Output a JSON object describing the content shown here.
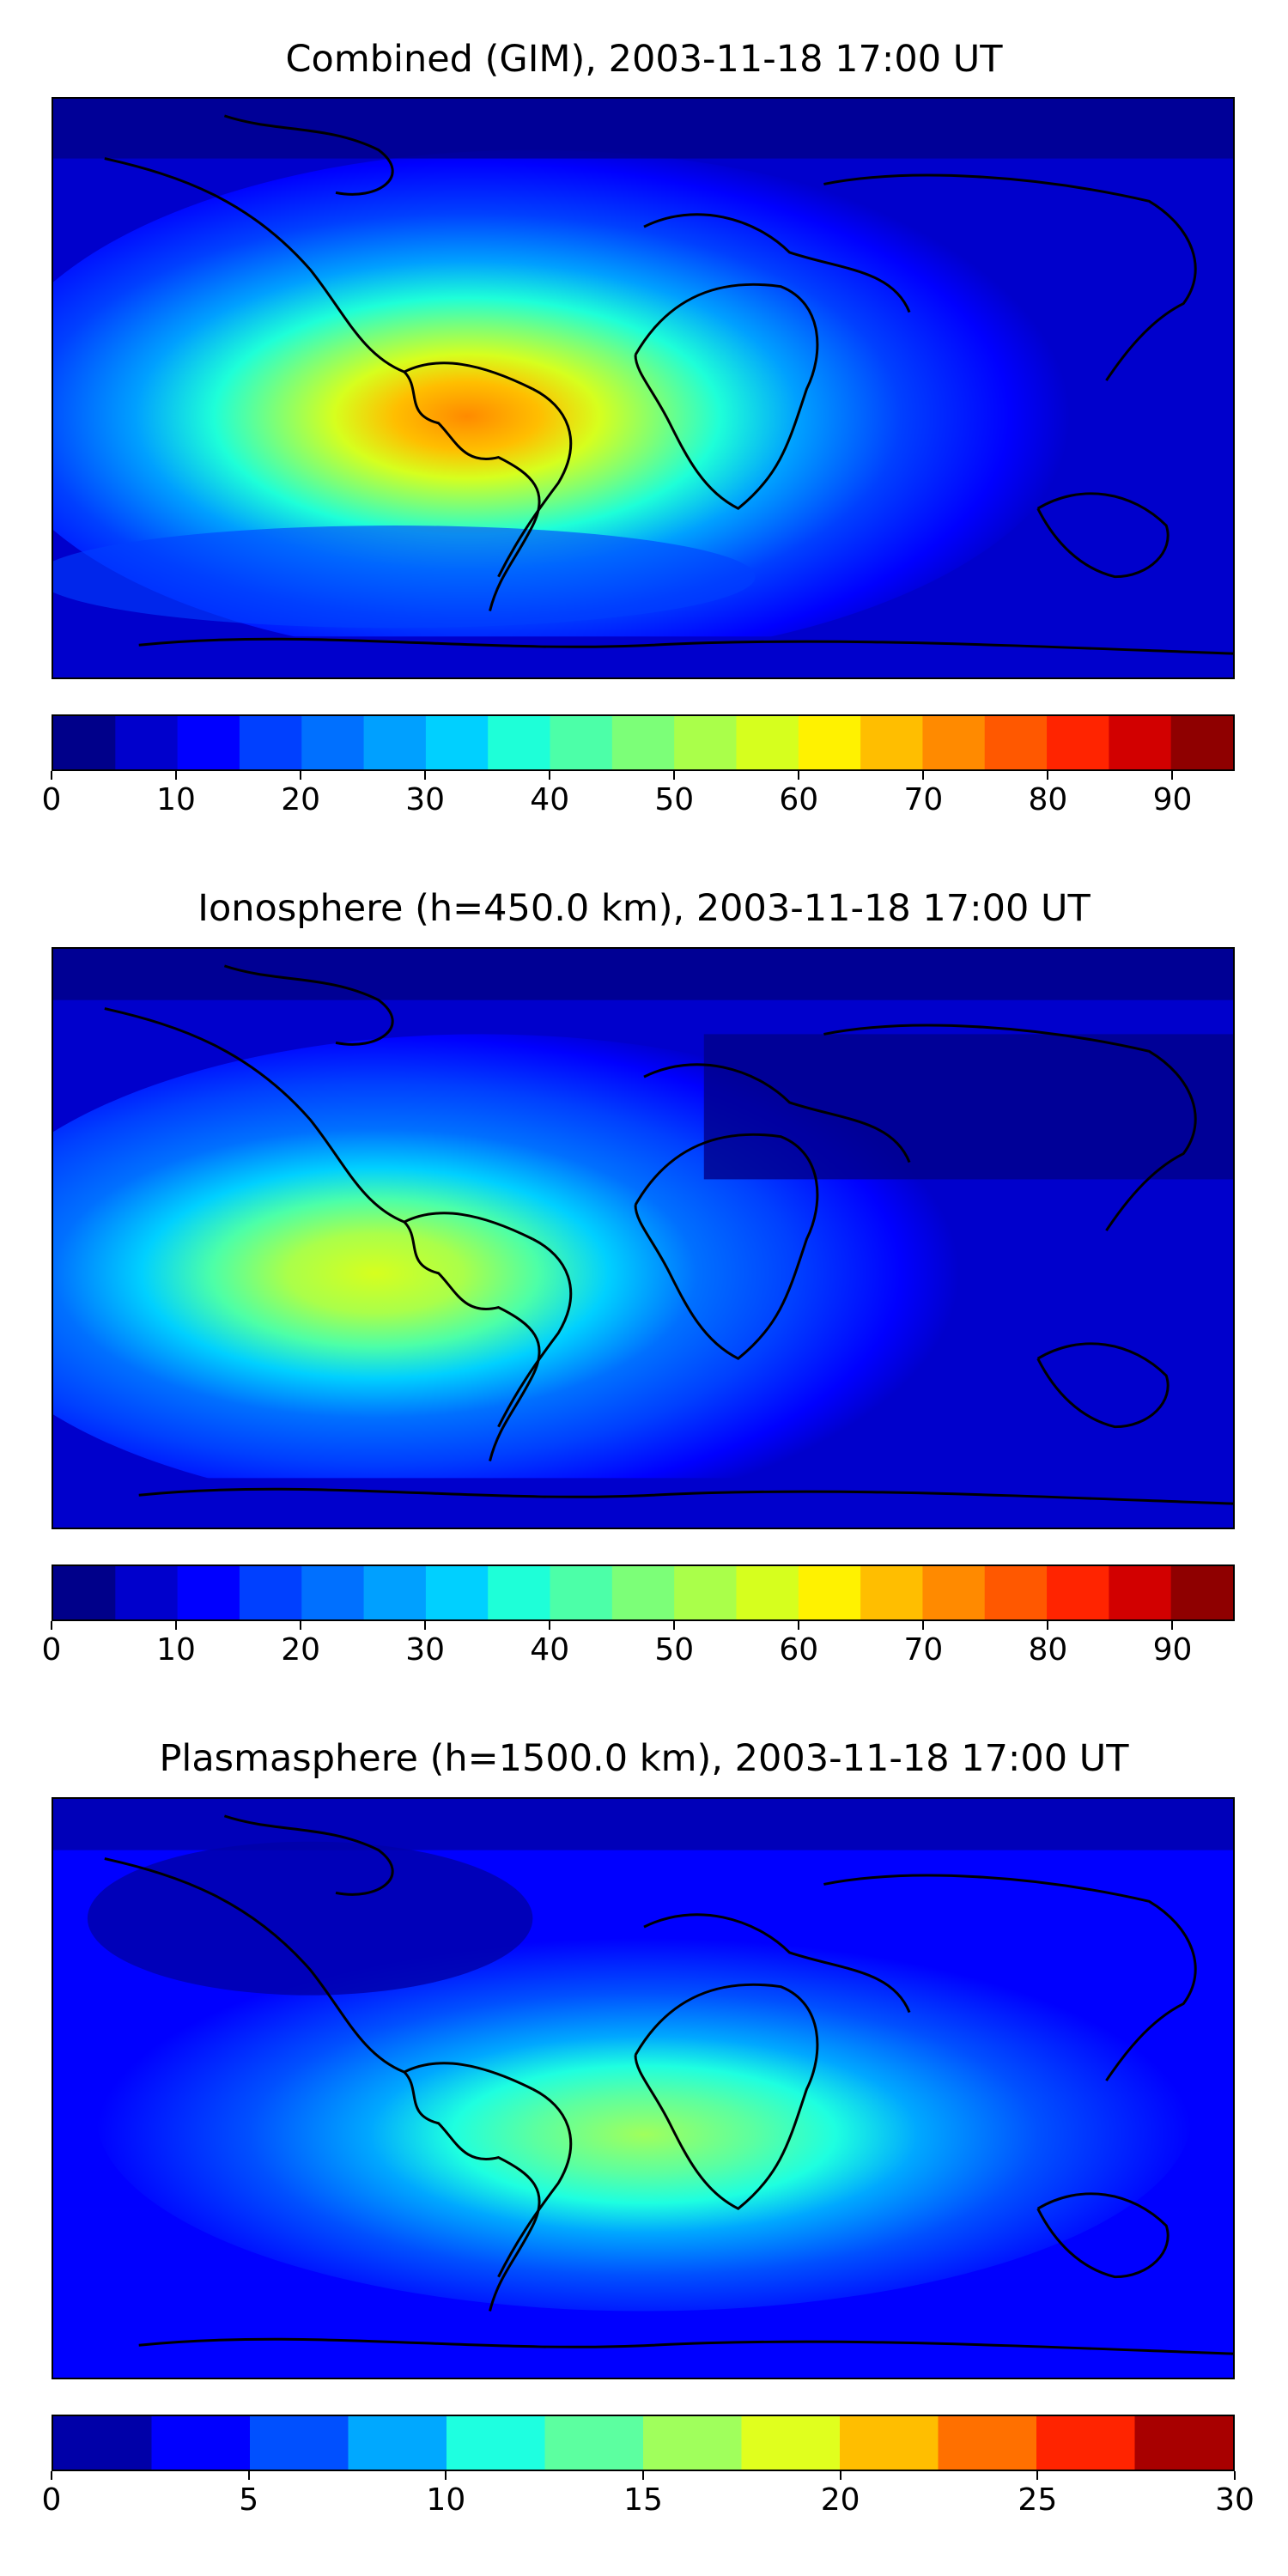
{
  "panels": [
    {
      "title": "Combined (GIM), 2003-11-18 17:00 UT",
      "colorbar": {
        "range": [
          0,
          95
        ],
        "boundaries": [
          0,
          5,
          10,
          15,
          20,
          25,
          30,
          35,
          40,
          45,
          50,
          55,
          60,
          65,
          70,
          75,
          80,
          85,
          90,
          95
        ],
        "colors": [
          "#00008a",
          "#0000cc",
          "#0000ff",
          "#0040ff",
          "#0070ff",
          "#00a0ff",
          "#00d0ff",
          "#1effd8",
          "#4cffa8",
          "#7cff78",
          "#aaff4a",
          "#d6ff1e",
          "#fff200",
          "#ffbe00",
          "#ff8a00",
          "#ff5800",
          "#ff2400",
          "#d20000",
          "#8f0000"
        ],
        "ticks": [
          "0",
          "10",
          "20",
          "30",
          "40",
          "50",
          "60",
          "70",
          "80",
          "90"
        ],
        "tick_values": [
          0,
          10,
          20,
          30,
          40,
          50,
          60,
          70,
          80,
          90
        ]
      }
    },
    {
      "title": "Ionosphere  (h=450.0 km), 2003-11-18 17:00 UT",
      "colorbar": {
        "range": [
          0,
          95
        ],
        "boundaries": [
          0,
          5,
          10,
          15,
          20,
          25,
          30,
          35,
          40,
          45,
          50,
          55,
          60,
          65,
          70,
          75,
          80,
          85,
          90,
          95
        ],
        "colors": [
          "#00008a",
          "#0000cc",
          "#0000ff",
          "#0040ff",
          "#0070ff",
          "#00a0ff",
          "#00d0ff",
          "#1effd8",
          "#4cffa8",
          "#7cff78",
          "#aaff4a",
          "#d6ff1e",
          "#fff200",
          "#ffbe00",
          "#ff8a00",
          "#ff5800",
          "#ff2400",
          "#d20000",
          "#8f0000"
        ],
        "ticks": [
          "0",
          "10",
          "20",
          "30",
          "40",
          "50",
          "60",
          "70",
          "80",
          "90"
        ],
        "tick_values": [
          0,
          10,
          20,
          30,
          40,
          50,
          60,
          70,
          80,
          90
        ]
      }
    },
    {
      "title": "Plasmasphere (h=1500.0 km), 2003-11-18 17:00 UT",
      "colorbar": {
        "range": [
          0,
          30
        ],
        "boundaries": [
          0,
          2.5,
          5,
          7.5,
          10,
          12.5,
          15,
          17.5,
          20,
          22.5,
          25,
          27.5,
          30
        ],
        "colors": [
          "#0000a8",
          "#0000ff",
          "#0050ff",
          "#00a8ff",
          "#1effe0",
          "#5cffa0",
          "#a0ff5c",
          "#e0ff1e",
          "#ffbe00",
          "#ff7000",
          "#ff2400",
          "#a80000"
        ],
        "ticks": [
          "0",
          "5",
          "10",
          "15",
          "20",
          "25",
          "30"
        ],
        "tick_values": [
          0,
          5,
          10,
          15,
          20,
          25,
          30
        ]
      }
    }
  ]
}
